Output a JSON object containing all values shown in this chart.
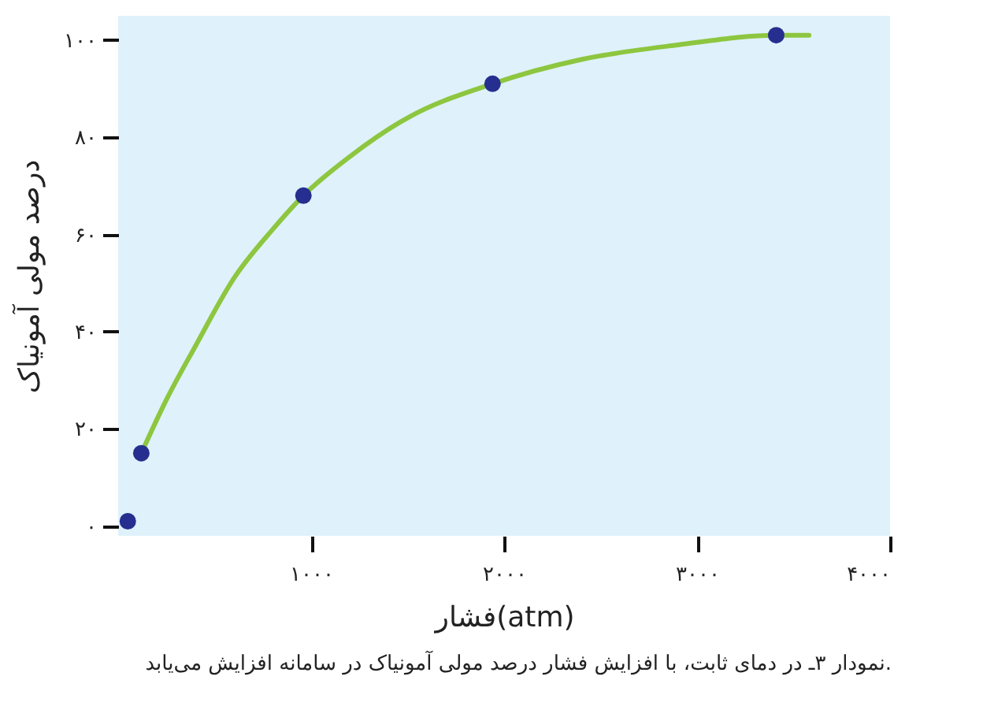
{
  "chart_data": {
    "type": "scatter",
    "xlabel": "فشار(atm)",
    "ylabel": "درصد مولی آمونیاک",
    "annotations": [
      "نمودار ۳ـ در دمای ثابت، با افزایش فشار درصد مولی آمونیاک در سامانه افزایش می‌یابد."
    ],
    "series": [
      {
        "type": "line",
        "marker": "none",
        "color": "#8dc63f",
        "x": [
          120,
          250,
          400,
          600,
          800,
          960,
          1200,
          1500,
          1940,
          2400,
          2900,
          3410,
          3580
        ],
        "values": [
          15,
          26,
          37,
          51,
          61,
          68,
          76,
          84,
          91,
          96,
          99,
          101,
          101
        ]
      },
      {
        "color": "#262f8f",
        "x": [
          50,
          120,
          960,
          1940,
          3410
        ],
        "values": [
          1,
          15,
          68,
          91,
          101
        ]
      }
    ],
    "xlim": [
      0,
      4000
    ],
    "xticks": [
      {
        "value": 1000,
        "label": "۱۰۰۰"
      },
      {
        "value": 2000,
        "label": "۲۰۰۰"
      },
      {
        "value": 3000,
        "label": "۳۰۰۰"
      },
      {
        "value": 4000,
        "label": "۴۰۰۰"
      }
    ],
    "ylim": [
      -2,
      105
    ],
    "yticks": [
      {
        "value": 0,
        "label": "۰"
      },
      {
        "value": 20,
        "label": "۲۰"
      },
      {
        "value": 40,
        "label": "۴۰"
      },
      {
        "value": 60,
        "label": "۶۰"
      },
      {
        "value": 80,
        "label": "۸۰"
      },
      {
        "value": 100,
        "label": "۱۰۰"
      }
    ],
    "grid": false,
    "marker": "circle",
    "line_style": "solid"
  }
}
